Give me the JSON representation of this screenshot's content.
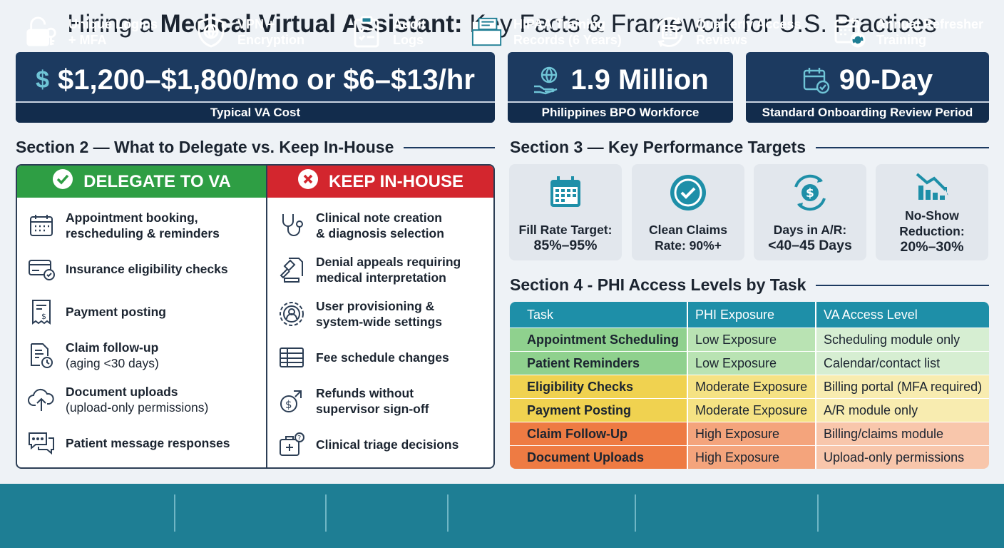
{
  "title": {
    "pre": "Hiring a ",
    "bold": "Medical Virtual Assistant:",
    "post": " Key Facts & Framework for U.S. Practices"
  },
  "stats": [
    {
      "value": "$1,200–$1,800/mo or $6–$13/hr",
      "caption": "Typical VA Cost",
      "icon": "dollar-icon"
    },
    {
      "value": "1.9 Million",
      "caption": "Philippines BPO Workforce",
      "icon": "globe-hand-icon"
    },
    {
      "value": "90-Day",
      "caption": "Standard Onboarding Review Period",
      "icon": "calendar-check-icon"
    }
  ],
  "section2": {
    "heading": "Section 2 — What to Delegate vs. Keep In-House",
    "delegate_header": "DELEGATE TO VA",
    "keep_header": "KEEP IN-HOUSE",
    "delegate": [
      {
        "line1": "Appointment booking,",
        "line2": "rescheduling & reminders",
        "icon": "calendar-icon"
      },
      {
        "line1": "Insurance eligibility checks",
        "line2": "",
        "icon": "insurance-card-icon"
      },
      {
        "line1": "Payment posting",
        "line2": "",
        "icon": "receipt-icon"
      },
      {
        "line1": "Claim follow-up",
        "line2": "(aging <30 days)",
        "icon": "document-clock-icon"
      },
      {
        "line1": "Document uploads",
        "line2": "(upload-only permissions)",
        "icon": "cloud-upload-icon"
      },
      {
        "line1": "Patient message responses",
        "line2": "",
        "icon": "chat-icon"
      }
    ],
    "keep": [
      {
        "line1": "Clinical note creation",
        "line2": "& diagnosis selection",
        "icon": "stethoscope-icon"
      },
      {
        "line1": "Denial appeals requiring",
        "line2": "medical interpretation",
        "icon": "gavel-icon"
      },
      {
        "line1": "User provisioning &",
        "line2": "system-wide settings",
        "icon": "user-gear-icon"
      },
      {
        "line1": "Fee schedule changes",
        "line2": "",
        "icon": "table-icon"
      },
      {
        "line1": "Refunds without",
        "line2": "supervisor sign-off",
        "icon": "refund-icon"
      },
      {
        "line1": "Clinical triage decisions",
        "line2": "",
        "icon": "medical-kit-icon"
      }
    ]
  },
  "section3": {
    "heading": "Section 3 — Key Performance Targets",
    "kpis": [
      {
        "line1": "Fill Rate Target:",
        "line2": "85%–95%",
        "icon": "calendar-grid-icon"
      },
      {
        "line1": "Clean Claims",
        "line2": "Rate: 90%+",
        "icon": "check-circle-icon"
      },
      {
        "line1": "Days in A/R:",
        "line2": "<40–45 Days",
        "icon": "money-cycle-icon"
      },
      {
        "line1": "No-Show",
        "line2": "Reduction:",
        "line3": "20%–30%",
        "icon": "chart-down-icon"
      }
    ]
  },
  "section4": {
    "heading": "Section 4 - PHI Access Levels by Task",
    "columns": [
      "Task",
      "PHI Exposure",
      "VA Access Level"
    ],
    "rows": [
      {
        "task": "Appointment Scheduling",
        "exposure": "Low Exposure",
        "access": "Scheduling module only",
        "level": "low"
      },
      {
        "task": "Patient Reminders",
        "exposure": "Low Exposure",
        "access": "Calendar/contact list",
        "level": "low"
      },
      {
        "task": "Eligibility Checks",
        "exposure": "Moderate Exposure",
        "access": "Billing portal (MFA required)",
        "level": "moderate"
      },
      {
        "task": "Payment Posting",
        "exposure": "Moderate Exposure",
        "access": "A/R module only",
        "level": "moderate"
      },
      {
        "task": "Claim Follow-Up",
        "exposure": "High Exposure",
        "access": "Billing/claims module",
        "level": "high"
      },
      {
        "task": "Document Uploads",
        "exposure": "High Exposure",
        "access": "Upload-only permissions",
        "level": "high"
      }
    ],
    "colors": {
      "low": [
        "#8fd18e",
        "#b9e3b3",
        "#d6eed2"
      ],
      "moderate": [
        "#f0d250",
        "#f5e283",
        "#f8ecb0"
      ],
      "high": [
        "#ee7b43",
        "#f4a47c",
        "#f8c6ab"
      ]
    }
  },
  "footer": [
    {
      "line1": "Unique Logins",
      "line2": "+ MFA",
      "icon": "lock-key-icon"
    },
    {
      "line1": "VPN +",
      "line2": "Encryption",
      "icon": "shield-globe-icon"
    },
    {
      "line1": "Audit",
      "line2": "Logs",
      "icon": "clipboard-icon"
    },
    {
      "line1": "HIPAA Training",
      "line2": "Records (6 Years)",
      "icon": "folder-icon"
    },
    {
      "line1": "Quarterly Access",
      "line2": "Reviews",
      "icon": "calendar-cycle-icon"
    },
    {
      "line1": "Annual Refresher",
      "line2": "Training",
      "icon": "calendar-refresh-icon"
    }
  ],
  "colors": {
    "navy": "#1c3a60",
    "teal": "#1e8fa8",
    "green": "#2e9e44",
    "red": "#d3262e",
    "footer": "#1e7e94"
  }
}
